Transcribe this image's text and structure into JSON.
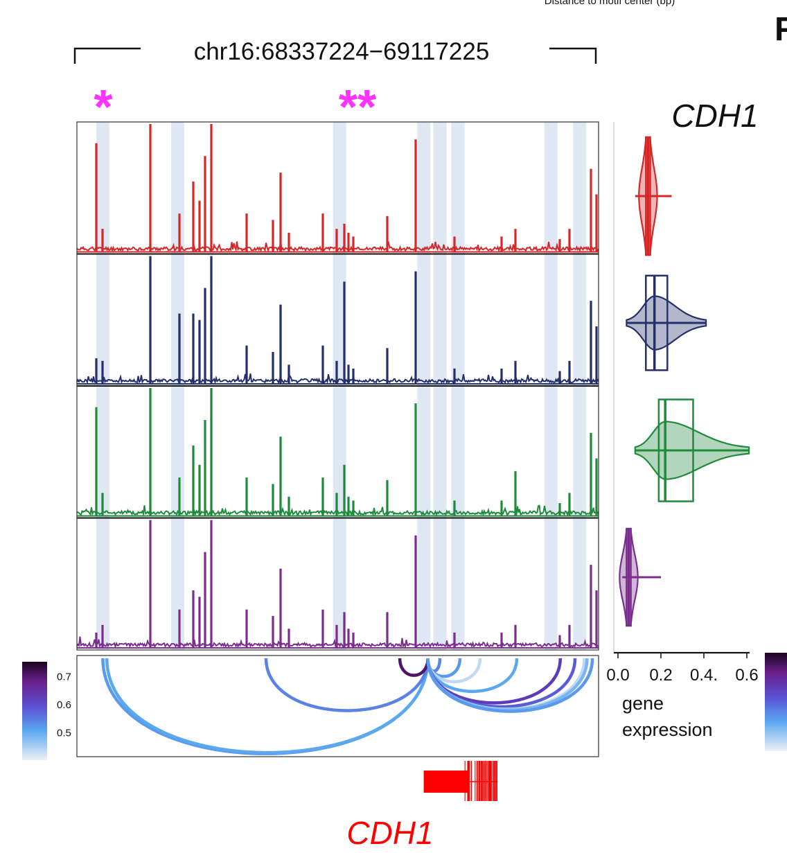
{
  "header": {
    "top_fragment": "Distance to motif center (bp)",
    "panel_letter": "F",
    "region": "chr16:68337224−69117225"
  },
  "chart_data": [
    {
      "type": "line",
      "x_range": [
        68337224,
        69117225
      ],
      "asterisks": [
        "*",
        "**"
      ],
      "highlight_positions": [
        68376000,
        68488000,
        68730000,
        68856000,
        68880000,
        68907000,
        69046000,
        69089000
      ],
      "series": [
        {
          "color": "#d62728"
        },
        {
          "color": "#25306b"
        },
        {
          "color": "#1f8a3b"
        },
        {
          "color": "#7b2d8e"
        }
      ]
    },
    {
      "type": "violin",
      "title": "CDH1",
      "xlabel": "gene expression",
      "xlim": [
        0.0,
        0.6
      ],
      "xticks": [
        "0.0",
        "0.2",
        "0.4.",
        "0.6"
      ],
      "groups": [
        {
          "color": "#d62728",
          "q1": 0.13,
          "median": 0.14,
          "q3": 0.15,
          "min": 0.08,
          "max": 0.25
        },
        {
          "color": "#25306b",
          "q1": 0.13,
          "median": 0.17,
          "q3": 0.23,
          "min": 0.04,
          "max": 0.41
        },
        {
          "color": "#1f8a3b",
          "q1": 0.19,
          "median": 0.22,
          "q3": 0.35,
          "min": 0.08,
          "max": 0.61
        },
        {
          "color": "#7b2d8e",
          "q1": 0.04,
          "median": 0.05,
          "q3": 0.06,
          "min": 0.02,
          "max": 0.2
        }
      ]
    },
    {
      "type": "arc",
      "colorbar": {
        "ticks": [
          "0.7",
          "0.6",
          "0.5"
        ],
        "range": [
          0.4,
          0.75
        ]
      },
      "links": [
        {
          "end": 68376000,
          "score": 0.52
        },
        {
          "end": 68382000,
          "score": 0.5
        },
        {
          "end": 68620000,
          "score": 0.55
        },
        {
          "end": 68820000,
          "score": 0.73
        },
        {
          "end": 68880000,
          "score": 0.55
        },
        {
          "end": 68910000,
          "score": 0.52
        },
        {
          "end": 68940000,
          "score": 0.43
        },
        {
          "end": 68995000,
          "score": 0.5
        },
        {
          "end": 69060000,
          "score": 0.65
        },
        {
          "end": 69082000,
          "score": 0.6
        },
        {
          "end": 69096000,
          "score": 0.43
        },
        {
          "end": 69100000,
          "score": 0.48
        },
        {
          "end": 69108000,
          "score": 0.52
        }
      ]
    }
  ],
  "gene": {
    "name": "CDH1",
    "start": 68862000,
    "end": 68960000
  },
  "colors": {
    "asterisk": "#ff33ff",
    "highlight": "#dfe7f3",
    "gene": "#ff0000"
  }
}
